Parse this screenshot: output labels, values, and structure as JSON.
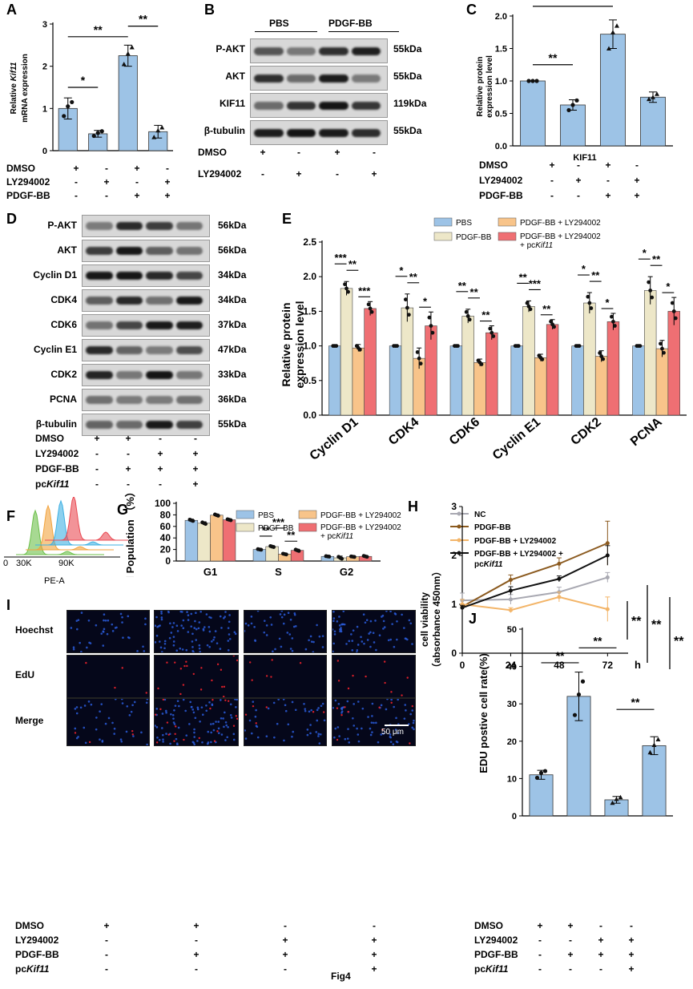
{
  "figure": {
    "caption": "Fig4",
    "panel_labels": [
      "A",
      "B",
      "C",
      "D",
      "E",
      "F",
      "G",
      "H",
      "I",
      "J"
    ],
    "sig": {
      "one": "*",
      "two": "**",
      "three": "***"
    },
    "colors": {
      "bar_blue": "#9dc3e6",
      "bar_cream": "#ede7c8",
      "bar_orange": "#f8c48a",
      "bar_red": "#ef6f73",
      "line_nc": "#a9a9b2",
      "line_pdgf": "#8b5a1f",
      "line_ly": "#f3b569",
      "line_pc": "#111111",
      "cell_blue": "#2a5bd8",
      "cell_red": "#d81f2a"
    }
  },
  "panelA": {
    "ylabel_line1": "Relative ",
    "ylabel_italic": "Kif11",
    "ylabel_line2": "mRNA expression",
    "yticks": [
      "0",
      "1",
      "2",
      "3"
    ],
    "rows": [
      {
        "label": "DMSO",
        "cells": [
          "+",
          "-",
          "+",
          "-"
        ]
      },
      {
        "label": "LY294002",
        "cells": [
          "-",
          "+",
          "-",
          "+"
        ]
      },
      {
        "label": "PDGF-BB",
        "cells": [
          "-",
          "-",
          "+",
          "+"
        ]
      }
    ]
  },
  "panelB": {
    "group_labels": [
      "PBS",
      "PDGF-BB"
    ],
    "bands": [
      {
        "name": "P-AKT",
        "kda": "55kDa"
      },
      {
        "name": "AKT",
        "kda": "55kDa"
      },
      {
        "name": "KIF11",
        "kda": "119kDa"
      },
      {
        "name": "β-tubulin",
        "kda": "55kDa"
      }
    ],
    "rows": [
      {
        "label": "DMSO",
        "cells": [
          "+",
          "-",
          "+",
          "-"
        ]
      },
      {
        "label": "LY294002",
        "cells": [
          "-",
          "+",
          "-",
          "+"
        ]
      }
    ]
  },
  "panelC": {
    "ylabel_line1": "Relative protein",
    "ylabel_line2": "expression level",
    "xlabel": "KIF11",
    "yticks": [
      "0.0",
      "0.5",
      "1.0",
      "1.5",
      "2.0"
    ],
    "rows": [
      {
        "label": "DMSO",
        "cells": [
          "+",
          "-",
          "+",
          "-"
        ]
      },
      {
        "label": "LY294002",
        "cells": [
          "-",
          "+",
          "-",
          "+"
        ]
      },
      {
        "label": "PDGF-BB",
        "cells": [
          "-",
          "-",
          "+",
          "+"
        ]
      }
    ]
  },
  "panelD": {
    "bands": [
      {
        "name": "P-AKT",
        "kda": "56kDa"
      },
      {
        "name": "AKT",
        "kda": "56kDa"
      },
      {
        "name": "Cyclin D1",
        "kda": "34kDa"
      },
      {
        "name": "CDK4",
        "kda": "34kDa"
      },
      {
        "name": "CDK6",
        "kda": "37kDa"
      },
      {
        "name": "Cyclin E1",
        "kda": "47kDa"
      },
      {
        "name": "CDK2",
        "kda": "33kDa"
      },
      {
        "name": "PCNA",
        "kda": "36kDa"
      },
      {
        "name": "β-tubulin",
        "kda": "55kDa"
      }
    ],
    "rows": [
      {
        "label": "DMSO",
        "cells": [
          "+",
          "+",
          "-",
          "-"
        ]
      },
      {
        "label": "LY294002",
        "cells": [
          "-",
          "-",
          "+",
          "+"
        ]
      },
      {
        "label": "PDGF-BB",
        "cells": [
          "-",
          "+",
          "+",
          "+"
        ]
      },
      {
        "label_prefix": "pc",
        "label_italic": "Kif11",
        "cells": [
          "-",
          "-",
          "-",
          "+"
        ]
      }
    ]
  },
  "panelE": {
    "ylabel_line1": "Relative protein",
    "ylabel_line2": "expression level",
    "yticks": [
      "0.0",
      "0.5",
      "1.0",
      "1.5",
      "2.0",
      "2.5"
    ],
    "legend": [
      "PBS",
      "PDGF-BB",
      "PDGF-BB + LY294002",
      "PDGF-BB + LY294002"
    ],
    "legend_extra_prefix": "+ pc",
    "legend_extra_italic": "Kif11"
  },
  "panelF": {
    "xticks": [
      "0",
      "30K",
      "90K"
    ],
    "xlabel": "PE-A"
  },
  "panelG": {
    "ylabel": "Cell Population （%）",
    "yticks": [
      "0",
      "20",
      "40",
      "60",
      "80",
      "100"
    ],
    "legend": [
      "PBS",
      "PDGF-BB",
      "PDGF-BB + LY294002",
      "PDGF-BB + LY294002"
    ],
    "legend_extra_prefix": "+ pc",
    "legend_extra_italic": "Kif11"
  },
  "panelH": {
    "ylabel_line1": "cell viability",
    "ylabel_line2": "（absorbance 450nm）",
    "yticks": [
      "0",
      "1",
      "2",
      "3"
    ],
    "xticks": [
      "0",
      "24",
      "48",
      "72"
    ],
    "xunit": "h",
    "legend": [
      "NC",
      "PDGF-BB",
      "PDGF-BB + LY294002",
      "PDGF-BB + LY294002 +"
    ],
    "legend_extra_prefix": "pc",
    "legend_extra_italic": "Kif11"
  },
  "panelI": {
    "row_labels": [
      "Hoechst",
      "EdU",
      "Merge"
    ],
    "scale_bar": "50 μm",
    "rows": [
      {
        "label": "DMSO",
        "cells": [
          "+",
          "+",
          "-",
          "-"
        ]
      },
      {
        "label": "LY294002",
        "cells": [
          "-",
          "-",
          "+",
          "+"
        ]
      },
      {
        "label": "PDGF-BB",
        "cells": [
          "-",
          "+",
          "+",
          "+"
        ]
      },
      {
        "label_prefix": "pc",
        "label_italic": "Kif11",
        "cells": [
          "-",
          "-",
          "-",
          "+"
        ]
      }
    ]
  },
  "panelJ": {
    "ylabel": "EDU postive cell rate(%)",
    "yticks": [
      "0",
      "10",
      "20",
      "30",
      "40",
      "50"
    ],
    "rows": [
      {
        "label": "DMSO",
        "cells": [
          "+",
          "+",
          "-",
          "-"
        ]
      },
      {
        "label": "LY294002",
        "cells": [
          "-",
          "-",
          "+",
          "+"
        ]
      },
      {
        "label": "PDGF-BB",
        "cells": [
          "-",
          "+",
          "+",
          "+"
        ]
      },
      {
        "label_prefix": "pc",
        "label_italic": "Kif11",
        "cells": [
          "-",
          "-",
          "-",
          "+"
        ]
      }
    ]
  },
  "chart_data": [
    {
      "id": "A",
      "type": "bar",
      "categories": [
        "1",
        "2",
        "3",
        "4"
      ],
      "values": [
        1.0,
        0.4,
        2.25,
        0.45
      ],
      "errors": [
        0.25,
        0.08,
        0.25,
        0.15
      ],
      "points": [
        [
          0.82,
          1.05,
          1.15
        ],
        [
          0.35,
          0.42,
          0.46
        ],
        [
          2.05,
          2.3,
          2.45
        ],
        [
          0.32,
          0.48,
          0.55
        ]
      ],
      "ylim": [
        0,
        3
      ],
      "brackets": [
        {
          "from": 0,
          "to": 1,
          "y": 1.5,
          "sig": "*"
        },
        {
          "from": 0,
          "to": 2,
          "y": 2.7,
          "sig": "**"
        },
        {
          "from": 2,
          "to": 3,
          "y": 2.95,
          "sig": "**"
        }
      ]
    },
    {
      "id": "C",
      "type": "bar",
      "categories": [
        "1",
        "2",
        "3",
        "4"
      ],
      "values": [
        1.0,
        0.63,
        1.72,
        0.75
      ],
      "errors": [
        0.0,
        0.08,
        0.22,
        0.08
      ],
      "points": [
        [
          1.0,
          1.0,
          1.0
        ],
        [
          0.55,
          0.63,
          0.7
        ],
        [
          1.5,
          1.75,
          1.85
        ],
        [
          0.72,
          0.75,
          0.8
        ]
      ],
      "ylim": [
        0,
        2
      ],
      "brackets": [
        {
          "from": 0,
          "to": 1,
          "y": 1.25,
          "sig": "**"
        },
        {
          "from": 0,
          "to": 2,
          "y": 2.15,
          "sig": "**"
        },
        {
          "from": 2,
          "to": 3,
          "y": 2.4,
          "sig": "**"
        }
      ]
    },
    {
      "id": "E",
      "type": "bar",
      "categories": [
        "Cyclin D1",
        "CDK4",
        "CDK6",
        "Cyclin E1",
        "CDK2",
        "PCNA"
      ],
      "series": [
        {
          "name": "PBS",
          "values": [
            1.0,
            1.0,
            1.0,
            1.0,
            1.0,
            1.0
          ],
          "errors": [
            0,
            0,
            0,
            0,
            0,
            0
          ]
        },
        {
          "name": "PDGF-BB",
          "values": [
            1.83,
            1.55,
            1.43,
            1.57,
            1.62,
            1.8
          ],
          "errors": [
            0.1,
            0.2,
            0.1,
            0.08,
            0.15,
            0.2
          ]
        },
        {
          "name": "PDGF-BB + LY294002",
          "values": [
            0.97,
            0.82,
            0.76,
            0.83,
            0.85,
            0.96
          ],
          "errors": [
            0.05,
            0.15,
            0.05,
            0.05,
            0.08,
            0.12
          ]
        },
        {
          "name": "PDGF-BB + LY294002 + pcKif11",
          "values": [
            1.54,
            1.29,
            1.19,
            1.31,
            1.35,
            1.5
          ],
          "errors": [
            0.1,
            0.2,
            0.1,
            0.07,
            0.12,
            0.2
          ]
        }
      ],
      "ylim": [
        0,
        2.5
      ],
      "sig_marks": [
        {
          "cat": 0,
          "a": 0,
          "b": 1,
          "sig": "***"
        },
        {
          "cat": 0,
          "a": 1,
          "b": 2,
          "sig": "**"
        },
        {
          "cat": 0,
          "a": 2,
          "b": 3,
          "sig": "***"
        },
        {
          "cat": 1,
          "a": 0,
          "b": 1,
          "sig": "*"
        },
        {
          "cat": 1,
          "a": 1,
          "b": 2,
          "sig": "**"
        },
        {
          "cat": 1,
          "a": 2,
          "b": 3,
          "sig": "*"
        },
        {
          "cat": 2,
          "a": 0,
          "b": 1,
          "sig": "**"
        },
        {
          "cat": 2,
          "a": 1,
          "b": 2,
          "sig": "**"
        },
        {
          "cat": 2,
          "a": 2,
          "b": 3,
          "sig": "**"
        },
        {
          "cat": 3,
          "a": 0,
          "b": 1,
          "sig": "**"
        },
        {
          "cat": 3,
          "a": 1,
          "b": 2,
          "sig": "***"
        },
        {
          "cat": 3,
          "a": 2,
          "b": 3,
          "sig": "**"
        },
        {
          "cat": 4,
          "a": 0,
          "b": 1,
          "sig": "*"
        },
        {
          "cat": 4,
          "a": 1,
          "b": 2,
          "sig": "**"
        },
        {
          "cat": 4,
          "a": 2,
          "b": 3,
          "sig": "*"
        },
        {
          "cat": 5,
          "a": 0,
          "b": 1,
          "sig": "*"
        },
        {
          "cat": 5,
          "a": 1,
          "b": 2,
          "sig": "**"
        },
        {
          "cat": 5,
          "a": 2,
          "b": 3,
          "sig": "*"
        }
      ]
    },
    {
      "id": "G",
      "type": "bar",
      "categories": [
        "G1",
        "S",
        "G2"
      ],
      "series": [
        {
          "name": "PBS",
          "values": [
            70.5,
            20.0,
            8.0
          ],
          "errors": [
            2,
            1,
            0.8
          ]
        },
        {
          "name": "PDGF-BB",
          "values": [
            65.5,
            25.0,
            5.5
          ],
          "errors": [
            2.5,
            1.5,
            3
          ]
        },
        {
          "name": "PDGF-BB + LY294002",
          "values": [
            79.5,
            12.0,
            7.5
          ],
          "errors": [
            2,
            1.2,
            0.8
          ]
        },
        {
          "name": "PDGF-BB + LY294002 + pcKif11",
          "values": [
            71.5,
            18.5,
            8.0
          ],
          "errors": [
            1.5,
            2,
            1.5
          ]
        }
      ],
      "ylim": [
        0,
        100
      ],
      "sig_marks": [
        {
          "cat": 1,
          "a": 0,
          "b": 1,
          "sig": "**"
        },
        {
          "cat": 1,
          "a": 1,
          "b": 2,
          "sig": "***"
        },
        {
          "cat": 1,
          "a": 2,
          "b": 3,
          "sig": "**"
        }
      ]
    },
    {
      "id": "H",
      "type": "line",
      "x": [
        0,
        24,
        48,
        72
      ],
      "xlabel": "h",
      "ylim": [
        0,
        3
      ],
      "series": [
        {
          "name": "NC",
          "values": [
            1.08,
            1.1,
            1.25,
            1.55
          ],
          "errors": [
            0.15,
            0.1,
            0.1,
            0.1
          ]
        },
        {
          "name": "PDGF-BB",
          "values": [
            0.95,
            1.5,
            1.83,
            2.25
          ],
          "errors": [
            0.05,
            0.1,
            0.12,
            0.45
          ]
        },
        {
          "name": "PDGF-BB + LY294002",
          "values": [
            1.0,
            0.88,
            1.15,
            0.9
          ],
          "errors": [
            0.1,
            0.05,
            0.1,
            0.25
          ]
        },
        {
          "name": "PDGF-BB + LY294002 + pcKif11",
          "values": [
            0.93,
            1.28,
            1.52,
            2.0
          ],
          "errors": [
            0.05,
            0.08,
            0.06,
            0.2
          ]
        }
      ],
      "sig": [
        "**",
        "**",
        "**"
      ]
    },
    {
      "id": "J",
      "type": "bar",
      "categories": [
        "1",
        "2",
        "3",
        "4"
      ],
      "values": [
        11.0,
        32.0,
        4.3,
        18.8
      ],
      "errors": [
        1.2,
        6.5,
        0.9,
        2.4
      ],
      "points": [
        [
          10.2,
          11.5,
          12.0
        ],
        [
          27.0,
          32.5,
          36.0
        ],
        [
          3.5,
          4.5,
          5.0
        ],
        [
          17.0,
          19.0,
          20.5
        ]
      ],
      "ylim": [
        0,
        50
      ],
      "brackets": [
        {
          "from": 0,
          "to": 1,
          "y": 41.0,
          "sig": "**"
        },
        {
          "from": 1,
          "to": 2,
          "y": 45.0,
          "sig": "**"
        },
        {
          "from": 2,
          "to": 3,
          "y": 28.5,
          "sig": "**"
        }
      ]
    }
  ]
}
